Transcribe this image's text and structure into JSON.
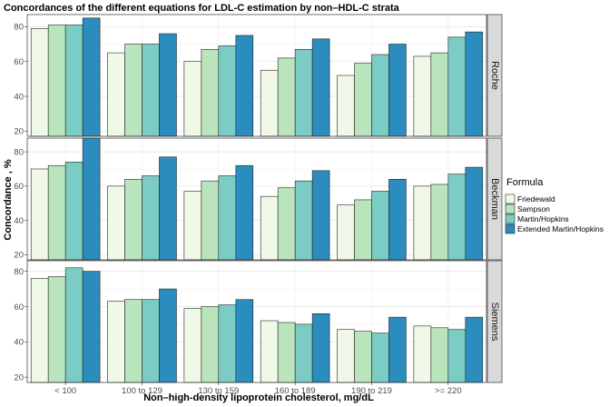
{
  "chart_data": {
    "type": "bar",
    "title": "Concordances of the different equations for LDL-C estimation by non–HDL-C strata",
    "xlabel": "Non–high-density lipoprotein cholesterol, mg/dL",
    "ylabel": "Concordance , %",
    "categories": [
      "< 100",
      "100 to 129",
      "130 to 159",
      "160 to 189",
      "190 to 219",
      ">= 220"
    ],
    "legend": {
      "title": "Formula",
      "placement": "right",
      "entries": [
        "Friedewald",
        "Sampson",
        "Martin/Hopkins",
        "Extended Martin/Hopkins"
      ]
    },
    "series_colors": {
      "Friedewald": "#f0f9e8",
      "Sampson": "#bae4bc",
      "Martin/Hopkins": "#7bccc4",
      "Extended Martin/Hopkins": "#2b8cbe"
    },
    "grid": true,
    "panels": [
      {
        "facet": "Roche",
        "ylim": [
          17,
          87
        ],
        "yticks": [
          20,
          40,
          60,
          80
        ],
        "series": [
          {
            "name": "Friedewald",
            "values": [
              79,
              65,
              60,
              55,
              52,
              63
            ]
          },
          {
            "name": "Sampson",
            "values": [
              81,
              70,
              67,
              62,
              59,
              65
            ]
          },
          {
            "name": "Martin/Hopkins",
            "values": [
              81,
              70,
              69,
              67,
              64,
              74
            ]
          },
          {
            "name": "Extended Martin/Hopkins",
            "values": [
              85,
              76,
              75,
              73,
              70,
              77
            ]
          }
        ]
      },
      {
        "facet": "Beckman",
        "ylim": [
          17,
          88
        ],
        "yticks": [
          20,
          40,
          60,
          80
        ],
        "series": [
          {
            "name": "Friedewald",
            "values": [
              70,
              60,
              57,
              54,
              49,
              60
            ]
          },
          {
            "name": "Sampson",
            "values": [
              72,
              64,
              63,
              59,
              52,
              61
            ]
          },
          {
            "name": "Martin/Hopkins",
            "values": [
              74,
              66,
              66,
              63,
              57,
              67
            ]
          },
          {
            "name": "Extended Martin/Hopkins",
            "values": [
              88,
              77,
              72,
              69,
              64,
              71
            ]
          }
        ]
      },
      {
        "facet": "Siemens",
        "ylim": [
          17,
          86
        ],
        "yticks": [
          20,
          40,
          60,
          80
        ],
        "series": [
          {
            "name": "Friedewald",
            "values": [
              76,
              63,
              59,
              52,
              47,
              49
            ]
          },
          {
            "name": "Sampson",
            "values": [
              77,
              64,
              60,
              51,
              46,
              48
            ]
          },
          {
            "name": "Martin/Hopkins",
            "values": [
              82,
              64,
              61,
              50,
              45,
              47
            ]
          },
          {
            "name": "Extended Martin/Hopkins",
            "values": [
              80,
              70,
              64,
              56,
              54,
              54
            ]
          }
        ]
      }
    ]
  }
}
